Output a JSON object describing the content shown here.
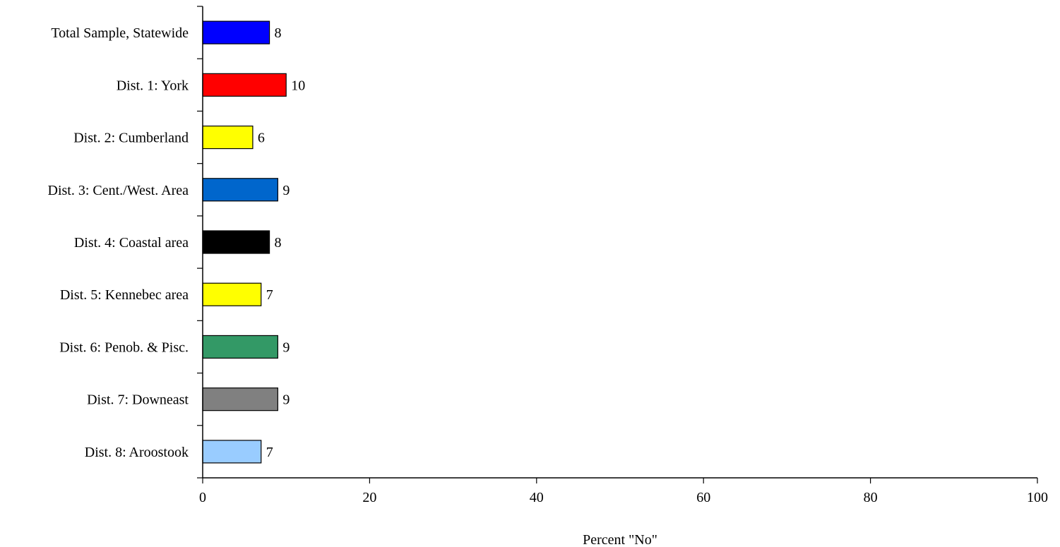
{
  "chart_data": {
    "type": "bar",
    "orientation": "horizontal",
    "categories": [
      "Total Sample, Statewide",
      "Dist. 1: York",
      "Dist. 2: Cumberland",
      "Dist. 3: Cent./West. Area",
      "Dist. 4: Coastal area",
      "Dist. 5: Kennebec area",
      "Dist. 6: Penob. & Pisc.",
      "Dist. 7: Downeast",
      "Dist. 8: Aroostook"
    ],
    "values": [
      8,
      10,
      6,
      9,
      8,
      7,
      9,
      9,
      7
    ],
    "value_labels": [
      "8",
      "10",
      "6",
      "9",
      "8",
      "7",
      "9",
      "9",
      "7"
    ],
    "bar_colors": [
      "#0000FF",
      "#FF0000",
      "#FFFF00",
      "#0066CC",
      "#000000",
      "#FFFF00",
      "#339966",
      "#808080",
      "#99CCFF"
    ],
    "xlabel": "Percent \"No\"",
    "ylabel": "",
    "xlim": [
      0,
      100
    ],
    "x_ticks": [
      0,
      20,
      40,
      60,
      80,
      100
    ],
    "x_tick_labels": [
      "0",
      "20",
      "40",
      "60",
      "80",
      "100"
    ],
    "grid": false,
    "legend": "none"
  }
}
